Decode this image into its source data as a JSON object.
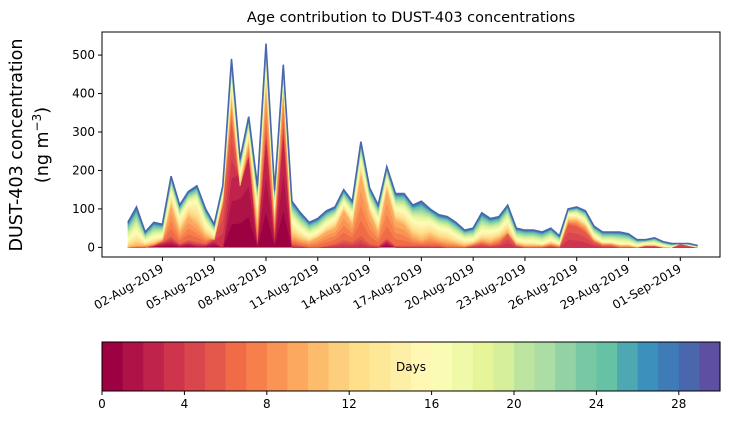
{
  "chart_data": {
    "type": "area",
    "title": "Age contribution to DUST-403 concentrations",
    "ylabel_line1": "DUST-403 concentration",
    "ylabel_line2": "(ng m",
    "ylabel_sup": "−3",
    "ylabel_close": ")",
    "xlabel": "",
    "x_start": "2019-07-31",
    "x_end": "2019-09-02",
    "x_day_range": [
      -1.5,
      34.3
    ],
    "ylim": [
      -25,
      560
    ],
    "yticks": [
      0,
      100,
      200,
      300,
      400,
      500
    ],
    "xticks": [
      {
        "day": 2,
        "label": "02-Aug-2019"
      },
      {
        "day": 5,
        "label": "05-Aug-2019"
      },
      {
        "day": 8,
        "label": "08-Aug-2019"
      },
      {
        "day": 11,
        "label": "11-Aug-2019"
      },
      {
        "day": 14,
        "label": "14-Aug-2019"
      },
      {
        "day": 17,
        "label": "17-Aug-2019"
      },
      {
        "day": 20,
        "label": "20-Aug-2019"
      },
      {
        "day": 23,
        "label": "23-Aug-2019"
      },
      {
        "day": 26,
        "label": "26-Aug-2019"
      },
      {
        "day": 29,
        "label": "29-Aug-2019"
      },
      {
        "day": 32,
        "label": "01-Sep-2019"
      }
    ],
    "x_days": [
      0.0,
      0.5,
      1.0,
      1.5,
      2.0,
      2.5,
      3.0,
      3.5,
      4.0,
      4.5,
      5.0,
      5.5,
      6.0,
      6.5,
      7.0,
      7.5,
      8.0,
      8.5,
      9.0,
      9.5,
      10.0,
      10.5,
      11.0,
      11.5,
      12.0,
      12.5,
      13.0,
      13.5,
      14.0,
      14.5,
      15.0,
      15.5,
      16.0,
      16.5,
      17.0,
      17.5,
      18.0,
      18.5,
      19.0,
      19.5,
      20.0,
      20.5,
      21.0,
      21.5,
      22.0,
      22.5,
      23.0,
      23.5,
      24.0,
      24.5,
      25.0,
      25.5,
      26.0,
      26.5,
      27.0,
      27.5,
      28.0,
      28.5,
      29.0,
      29.5,
      30.0,
      30.5,
      31.0,
      31.5,
      32.0,
      32.5,
      33.0
    ],
    "total": [
      65,
      105,
      40,
      65,
      60,
      185,
      110,
      145,
      160,
      100,
      60,
      160,
      490,
      230,
      340,
      160,
      530,
      150,
      475,
      120,
      90,
      65,
      75,
      95,
      105,
      150,
      120,
      275,
      155,
      110,
      210,
      140,
      140,
      110,
      120,
      100,
      85,
      80,
      65,
      45,
      50,
      90,
      75,
      80,
      110,
      50,
      45,
      45,
      40,
      50,
      30,
      100,
      105,
      95,
      55,
      40,
      40,
      40,
      35,
      20,
      20,
      25,
      15,
      10,
      10,
      10,
      5
    ],
    "days_0_3": [
      0,
      0,
      0,
      5,
      10,
      15,
      5,
      10,
      5,
      5,
      15,
      0,
      180,
      190,
      240,
      10,
      280,
      20,
      290,
      0,
      0,
      0,
      0,
      0,
      0,
      0,
      0,
      0,
      0,
      0,
      15,
      0,
      0,
      0,
      0,
      0,
      0,
      0,
      0,
      0,
      0,
      0,
      0,
      0,
      0,
      0,
      0,
      0,
      0,
      0,
      0,
      0,
      0,
      0,
      0,
      0,
      0,
      0,
      0,
      0,
      0,
      0,
      0,
      0,
      0,
      0,
      0
    ],
    "days_0_6": [
      0,
      0,
      0,
      5,
      15,
      30,
      10,
      20,
      15,
      10,
      25,
      110,
      330,
      160,
      240,
      20,
      310,
      40,
      330,
      10,
      5,
      0,
      0,
      5,
      10,
      20,
      15,
      30,
      10,
      5,
      25,
      5,
      5,
      5,
      5,
      5,
      5,
      0,
      0,
      0,
      5,
      10,
      5,
      10,
      35,
      5,
      0,
      0,
      0,
      5,
      0,
      60,
      55,
      40,
      15,
      5,
      5,
      0,
      0,
      0,
      5,
      5,
      0,
      0,
      10,
      5,
      0
    ],
    "days_0_10": [
      0,
      5,
      5,
      10,
      20,
      110,
      40,
      80,
      60,
      30,
      20,
      120,
      390,
      160,
      275,
      60,
      425,
      80,
      420,
      30,
      20,
      15,
      25,
      40,
      50,
      95,
      60,
      190,
      90,
      40,
      150,
      70,
      60,
      30,
      20,
      30,
      20,
      15,
      10,
      5,
      10,
      20,
      15,
      25,
      40,
      10,
      5,
      5,
      5,
      10,
      5,
      70,
      70,
      55,
      20,
      10,
      10,
      5,
      5,
      0,
      5,
      5,
      0,
      0,
      10,
      5,
      0
    ],
    "days_0_16": [
      20,
      40,
      15,
      25,
      30,
      145,
      75,
      115,
      120,
      60,
      35,
      140,
      430,
      195,
      300,
      110,
      470,
      110,
      430,
      70,
      45,
      30,
      40,
      60,
      75,
      115,
      85,
      230,
      115,
      70,
      180,
      100,
      95,
      70,
      60,
      65,
      50,
      45,
      30,
      20,
      20,
      40,
      40,
      45,
      70,
      20,
      15,
      15,
      10,
      20,
      10,
      85,
      85,
      70,
      30,
      15,
      15,
      10,
      10,
      5,
      10,
      10,
      5,
      0,
      10,
      5,
      0
    ],
    "colorbar_label": "Days",
    "colorbar_ticks": [
      0,
      4,
      8,
      12,
      16,
      20,
      24,
      28
    ],
    "colorbar_range": [
      0,
      30
    ],
    "colors": [
      "#9e0142",
      "#ae1246",
      "#bf224a",
      "#d0344c",
      "#da464d",
      "#e3584b",
      "#ef6c46",
      "#f67f4b",
      "#f99454",
      "#fca85e",
      "#fdbc6c",
      "#fdcf7d",
      "#fee08b",
      "#fee898",
      "#feefa7",
      "#fff8b5",
      "#f9fcb4",
      "#f0f9a8",
      "#e6f598",
      "#d6ef9b",
      "#bee5a0",
      "#abdda4",
      "#92d2a4",
      "#79c8a4",
      "#66c2a5",
      "#4da8b1",
      "#3b90bc",
      "#3f7bb7",
      "#4a67ae",
      "#5e4fa2"
    ]
  }
}
